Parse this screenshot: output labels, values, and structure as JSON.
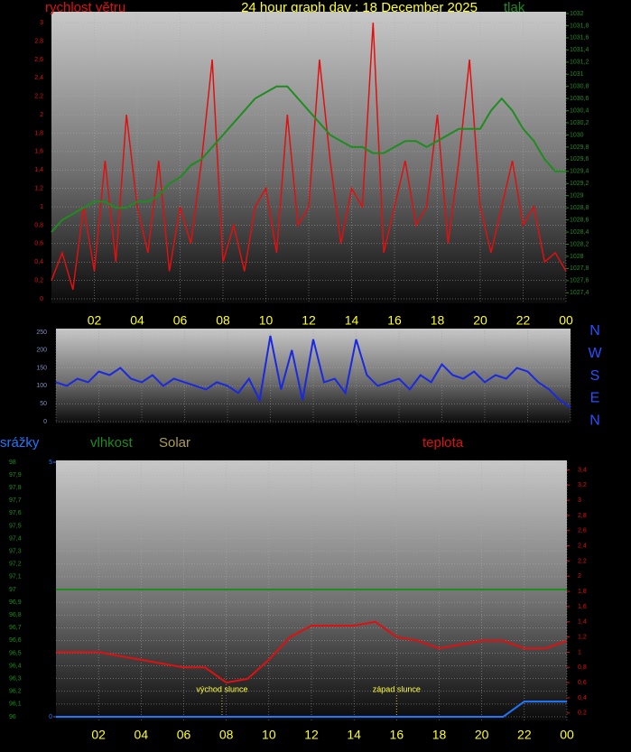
{
  "chart_data": [
    {
      "type": "line",
      "title": "24 hour graph day : 18 December 2025",
      "x": [
        0,
        0.5,
        1,
        1.5,
        2,
        2.5,
        3,
        3.5,
        4,
        4.5,
        5,
        5.5,
        6,
        6.5,
        7,
        7.5,
        8,
        8.5,
        9,
        9.5,
        10,
        10.5,
        11,
        11.5,
        12,
        12.5,
        13,
        13.5,
        14,
        14.5,
        15,
        15.5,
        16,
        16.5,
        17,
        17.5,
        18,
        18.5,
        19,
        19.5,
        20,
        20.5,
        21,
        21.5,
        22,
        22.5,
        23,
        23.5,
        24
      ],
      "series": [
        {
          "name": "rychlost větru",
          "color": "#e01010",
          "values": [
            0.2,
            0.5,
            0.1,
            1.0,
            0.3,
            1.5,
            0.4,
            2.0,
            1.0,
            0.5,
            1.5,
            0.3,
            1.0,
            0.6,
            1.5,
            2.6,
            0.4,
            0.8,
            0.3,
            1.0,
            1.2,
            0.5,
            2.0,
            0.8,
            1.0,
            2.6,
            1.5,
            0.6,
            1.2,
            1.0,
            3.0,
            0.5,
            1.0,
            1.5,
            0.8,
            1.0,
            2.0,
            0.6,
            1.5,
            2.6,
            1.0,
            0.5,
            1.0,
            1.5,
            0.8,
            1.0,
            0.4,
            0.5,
            0.3
          ]
        },
        {
          "name": "tlak",
          "color": "#1e8c1e",
          "axis": "y2",
          "values": [
            1028.4,
            1028.6,
            1028.7,
            1028.8,
            1028.9,
            1028.9,
            1028.8,
            1028.8,
            1028.9,
            1028.9,
            1029.0,
            1029.2,
            1029.3,
            1029.5,
            1029.6,
            1029.8,
            1030.0,
            1030.2,
            1030.4,
            1030.6,
            1030.7,
            1030.8,
            1030.8,
            1030.6,
            1030.4,
            1030.2,
            1030.0,
            1029.9,
            1029.8,
            1029.8,
            1029.7,
            1029.7,
            1029.8,
            1029.9,
            1029.9,
            1029.8,
            1029.9,
            1030.0,
            1030.1,
            1030.1,
            1030.1,
            1030.4,
            1030.6,
            1030.4,
            1030.1,
            1029.9,
            1029.6,
            1029.4,
            1029.4
          ]
        }
      ],
      "xlim": [
        0,
        24
      ],
      "xticks": [
        {
          "value": 2,
          "label": "02"
        },
        {
          "value": 4,
          "label": "04"
        },
        {
          "value": 6,
          "label": "06"
        },
        {
          "value": 8,
          "label": "08"
        },
        10,
        12,
        14,
        16,
        18,
        20,
        22,
        {
          "value": 24,
          "label": "00"
        }
      ],
      "ylim": [
        0,
        3.1
      ],
      "yticks": [
        0,
        {
          "value": 0.2,
          "label": "0,2"
        },
        {
          "value": 0.4,
          "label": "0,4"
        },
        {
          "value": 0.6,
          "label": "0,6"
        },
        {
          "value": 0.8,
          "label": "0,8"
        },
        1,
        {
          "value": 1.2,
          "label": "1,2"
        },
        {
          "value": 1.4,
          "label": "1,4"
        },
        {
          "value": 1.6,
          "label": "1,6"
        },
        {
          "value": 1.8,
          "label": "1,8"
        },
        2,
        {
          "value": 2.2,
          "label": "2,2"
        },
        {
          "value": 2.4,
          "label": "2,4"
        },
        {
          "value": 2.6,
          "label": "2,6"
        },
        {
          "value": 2.8,
          "label": "2,8"
        },
        3
      ],
      "y2lim": [
        1027.3,
        1032
      ],
      "y2ticks": [
        {
          "value": 1027.4,
          "label": "1027,4"
        },
        {
          "value": 1027.6,
          "label": "1027,6"
        },
        {
          "value": 1027.8,
          "label": "1027,8"
        },
        1028,
        {
          "value": 1028.2,
          "label": "1028,2"
        },
        {
          "value": 1028.4,
          "label": "1028,4"
        },
        {
          "value": 1028.6,
          "label": "1028,6"
        },
        {
          "value": 1028.8,
          "label": "1028,8"
        },
        1029,
        {
          "value": 1029.2,
          "label": "1029,2"
        },
        {
          "value": 1029.4,
          "label": "1029,4"
        },
        {
          "value": 1029.6,
          "label": "1029,6"
        },
        {
          "value": 1029.8,
          "label": "1029,8"
        },
        1030,
        {
          "value": 1030.2,
          "label": "1030,2"
        },
        {
          "value": 1030.4,
          "label": "1030,4"
        },
        {
          "value": 1030.6,
          "label": "1030,6"
        },
        {
          "value": 1030.8,
          "label": "1030,8"
        },
        1031,
        {
          "value": 1031.2,
          "label": "1031,2"
        },
        {
          "value": 1031.4,
          "label": "1031,4"
        },
        {
          "value": 1031.6,
          "label": "1031,6"
        },
        {
          "value": 1031.8,
          "label": "1031,8"
        },
        1032
      ],
      "grid": true
    },
    {
      "type": "line",
      "x": [
        0,
        0.5,
        1,
        1.5,
        2,
        2.5,
        3,
        3.5,
        4,
        4.5,
        5,
        5.5,
        6,
        6.5,
        7,
        7.5,
        8,
        8.5,
        9,
        9.5,
        10,
        10.5,
        11,
        11.5,
        12,
        12.5,
        13,
        13.5,
        14,
        14.5,
        15,
        15.5,
        16,
        16.5,
        17,
        17.5,
        18,
        18.5,
        19,
        19.5,
        20,
        20.5,
        21,
        21.5,
        22,
        22.5,
        23,
        23.5,
        24
      ],
      "series": [
        {
          "color": "#1a28e0",
          "values": [
            110,
            100,
            120,
            110,
            140,
            130,
            150,
            120,
            110,
            130,
            100,
            120,
            110,
            100,
            90,
            110,
            100,
            80,
            120,
            60,
            240,
            90,
            200,
            60,
            230,
            110,
            120,
            80,
            230,
            130,
            100,
            110,
            120,
            90,
            130,
            110,
            160,
            130,
            120,
            140,
            110,
            130,
            120,
            150,
            140,
            110,
            90,
            60,
            40
          ]
        }
      ],
      "xlim": [
        0,
        24
      ],
      "ylim": [
        0,
        255
      ],
      "yticks": [
        0,
        50,
        100,
        150,
        200,
        250
      ],
      "directions": [
        "N",
        "W",
        "S",
        "E",
        "N"
      ],
      "grid": true
    },
    {
      "type": "line",
      "x": [
        0,
        1,
        2,
        3,
        4,
        5,
        6,
        7,
        8,
        9,
        10,
        11,
        12,
        13,
        14,
        15,
        16,
        17,
        18,
        19,
        20,
        21,
        22,
        23,
        24
      ],
      "series": [
        {
          "name": "srážky",
          "color": "#1e78ff",
          "axis": "y3",
          "values": [
            0,
            0,
            0,
            0,
            0,
            0,
            0,
            0,
            0,
            0,
            0,
            0,
            0,
            0,
            0,
            0,
            0,
            0,
            0,
            0,
            0,
            0,
            0.3,
            0.3,
            0.3
          ]
        },
        {
          "name": "vlhkost",
          "color": "#1e8c1e",
          "values": [
            97,
            97,
            97,
            97,
            97,
            97,
            97,
            97,
            97,
            97,
            97,
            97,
            97,
            97,
            97,
            97,
            97,
            97,
            97,
            97,
            97,
            97,
            97,
            97,
            97
          ]
        },
        {
          "name": "teplota",
          "color": "#e01010",
          "axis": "y2",
          "values": [
            1.0,
            1.0,
            1.0,
            0.95,
            0.9,
            0.85,
            0.8,
            0.8,
            0.6,
            0.65,
            0.9,
            1.2,
            1.35,
            1.35,
            1.35,
            1.4,
            1.2,
            1.15,
            1.05,
            1.1,
            1.15,
            1.15,
            1.05,
            1.05,
            1.15
          ]
        }
      ],
      "solar_label": "Solar",
      "annotations": [
        {
          "text": "východ slunce",
          "x": 7.8
        },
        {
          "text": "západ slunce",
          "x": 16.0
        }
      ],
      "xlim": [
        0,
        24
      ],
      "xticks": [
        {
          "value": 2,
          "label": "02"
        },
        {
          "value": 4,
          "label": "04"
        },
        {
          "value": 6,
          "label": "06"
        },
        {
          "value": 8,
          "label": "08"
        },
        10,
        12,
        14,
        16,
        18,
        20,
        22,
        {
          "value": 24,
          "label": "00"
        }
      ],
      "ylim": [
        96,
        98
      ],
      "yticks": [
        96,
        {
          "value": 96.1,
          "label": "96,1"
        },
        {
          "value": 96.2,
          "label": "96,2"
        },
        {
          "value": 96.3,
          "label": "96,3"
        },
        {
          "value": 96.4,
          "label": "96,4"
        },
        {
          "value": 96.5,
          "label": "96,5"
        },
        {
          "value": 96.6,
          "label": "96,6"
        },
        {
          "value": 96.7,
          "label": "96,7"
        },
        {
          "value": 96.8,
          "label": "96,8"
        },
        {
          "value": 96.9,
          "label": "96,9"
        },
        97,
        {
          "value": 97.1,
          "label": "97,1"
        },
        {
          "value": 97.2,
          "label": "97,2"
        },
        {
          "value": 97.3,
          "label": "97,3"
        },
        {
          "value": 97.4,
          "label": "97,4"
        },
        {
          "value": 97.5,
          "label": "97,5"
        },
        {
          "value": 97.6,
          "label": "97,6"
        },
        {
          "value": 97.7,
          "label": "97,7"
        },
        {
          "value": 97.8,
          "label": "97,8"
        },
        {
          "value": 97.9,
          "label": "97,9"
        },
        98
      ],
      "y2lim": [
        0.15,
        3.5
      ],
      "y2ticks": [
        {
          "value": 0.2,
          "label": "0,2"
        },
        {
          "value": 0.4,
          "label": "0,4"
        },
        {
          "value": 0.6,
          "label": "0,6"
        },
        {
          "value": 0.8,
          "label": "0,8"
        },
        1,
        {
          "value": 1.2,
          "label": "1,2"
        },
        {
          "value": 1.4,
          "label": "1,4"
        },
        {
          "value": 1.6,
          "label": "1,6"
        },
        {
          "value": 1.8,
          "label": "1,8"
        },
        2,
        {
          "value": 2.2,
          "label": "2,2"
        },
        {
          "value": 2.4,
          "label": "2,4"
        },
        {
          "value": 2.6,
          "label": "2,6"
        },
        {
          "value": 2.8,
          "label": "2,8"
        },
        3,
        {
          "value": 3.2,
          "label": "3,2"
        },
        {
          "value": 3.4,
          "label": "3,4"
        }
      ],
      "y3lim": [
        0,
        5
      ],
      "y3ticks": [
        0,
        5
      ],
      "grid": true
    }
  ]
}
